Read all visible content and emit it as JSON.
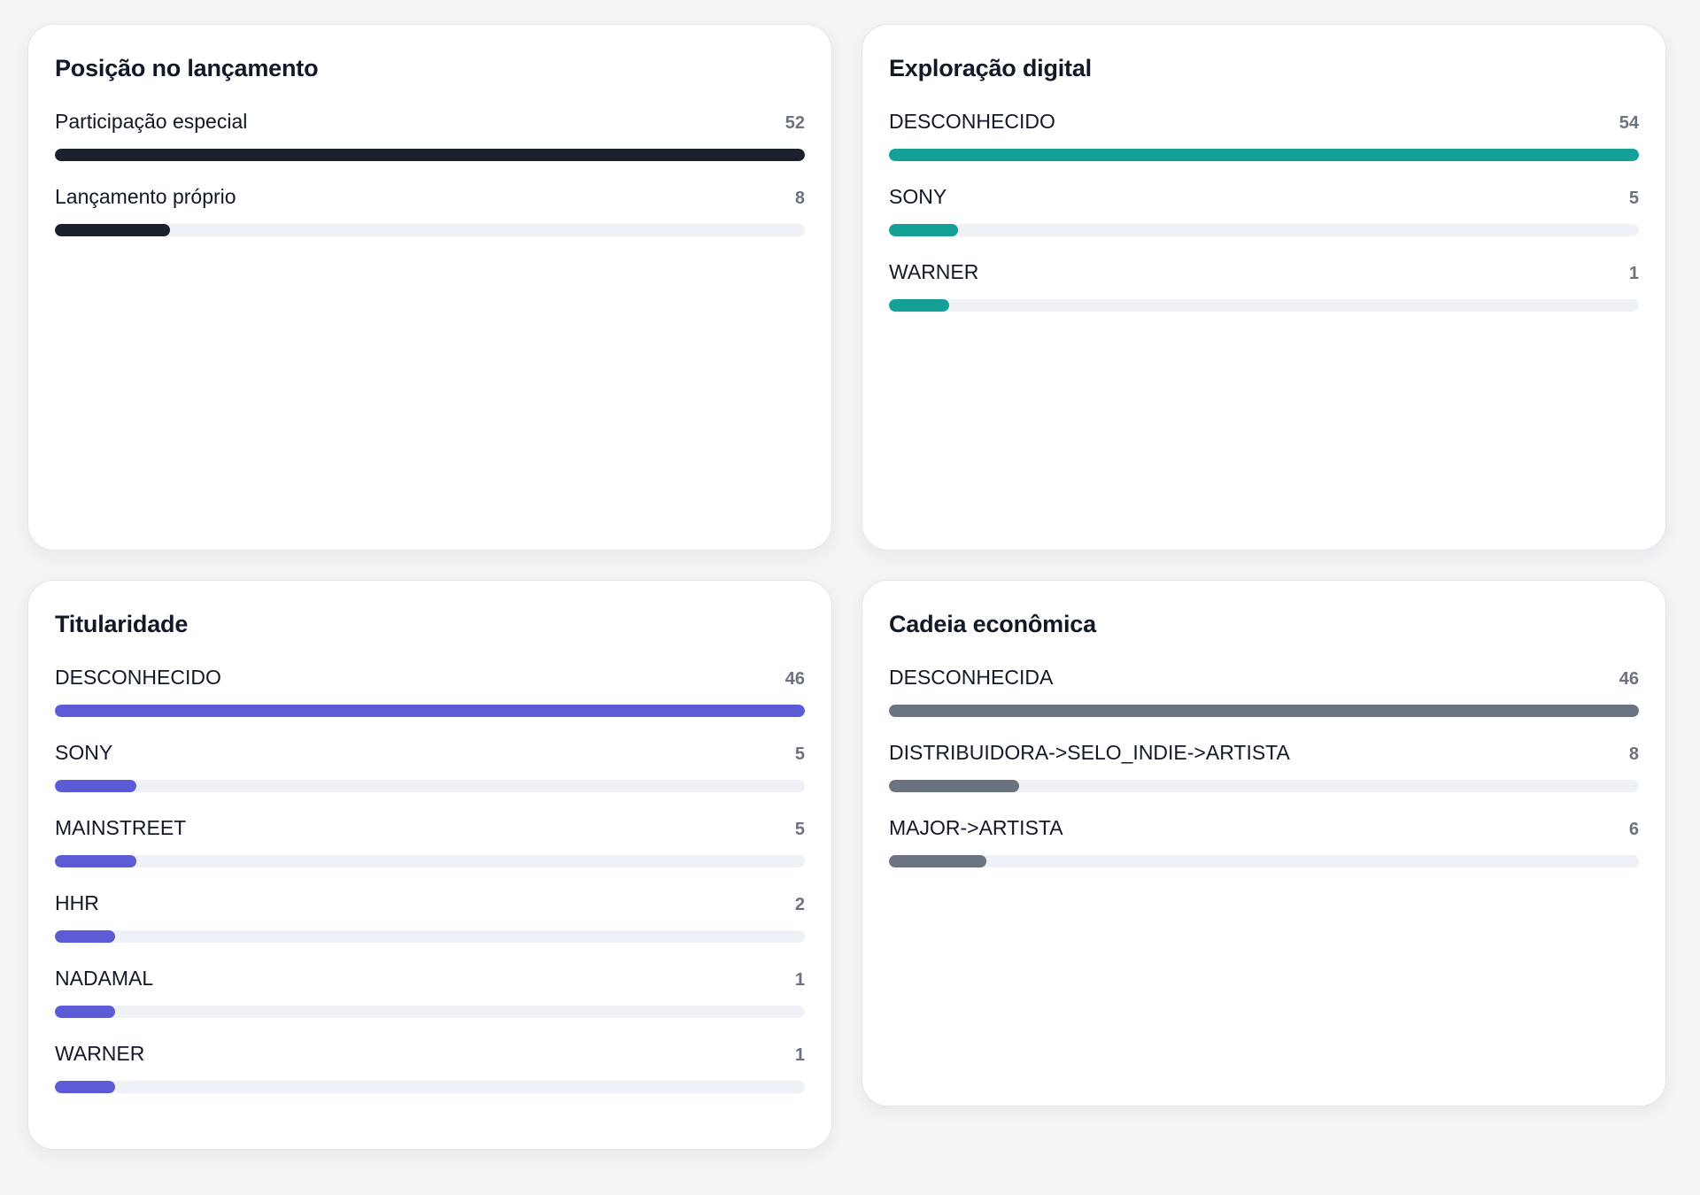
{
  "chart_data": [
    {
      "type": "bar",
      "title": "Posição no lançamento",
      "color": "#1a202c",
      "categories": [
        "Participação especial",
        "Lançamento próprio"
      ],
      "values": [
        52,
        8
      ],
      "labels": [
        "52",
        "8"
      ]
    },
    {
      "type": "bar",
      "title": "Exploração digital",
      "color": "#14a097",
      "categories": [
        "DESCONHECIDO",
        "SONY",
        "WARNER"
      ],
      "values": [
        54,
        5,
        1
      ],
      "labels": [
        "54",
        "5",
        "1"
      ]
    },
    {
      "type": "bar",
      "title": "Titularidade",
      "color": "#5b5bd6",
      "categories": [
        "DESCONHECIDO",
        "SONY",
        "MAINSTREET",
        "HHR",
        "NADAMAL",
        "WARNER"
      ],
      "values": [
        46,
        5,
        5,
        2,
        1,
        1
      ],
      "labels": [
        "46",
        "5",
        "5",
        "2",
        "1",
        "1"
      ]
    },
    {
      "type": "bar",
      "title": "Cadeia econômica",
      "color": "#6b7280",
      "categories": [
        "DESCONHECIDA",
        "DISTRIBUIDORA->SELO_INDIE->ARTISTA",
        "MAJOR->ARTISTA"
      ],
      "values": [
        46,
        8,
        6
      ],
      "labels": [
        "46",
        "8",
        "6"
      ]
    }
  ]
}
